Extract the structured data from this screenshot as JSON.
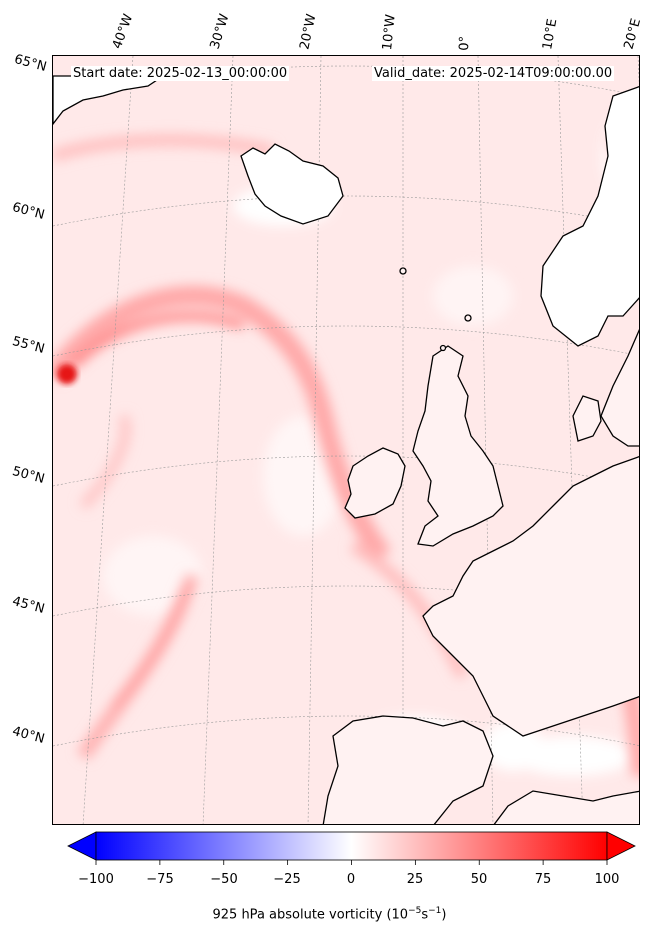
{
  "header": {
    "start_date": "Start date: 2025-02-13_00:00:00",
    "valid_date": "Valid_date: 2025-02-14T09:00:00.00"
  },
  "longitude_labels": [
    "40°W",
    "30°W",
    "20°W",
    "10°W",
    "0°",
    "10°E",
    "20°E"
  ],
  "latitude_labels": [
    "65°N",
    "60°N",
    "55°N",
    "50°N",
    "45°N",
    "40°N"
  ],
  "colorbar": {
    "ticks": [
      "−100",
      "−75",
      "−50",
      "−25",
      "0",
      "25",
      "50",
      "75",
      "100"
    ],
    "label_main": "925 hPa absolute vorticity (10",
    "label_exp1": "−5",
    "label_mid": "s",
    "label_exp2": "−1",
    "label_end": ")",
    "min": -100,
    "max": 100,
    "color_low": "#0000ff",
    "color_mid": "#ffffff",
    "color_high": "#ff0000"
  },
  "map": {
    "land_outline_color": "#000000",
    "ocean_field_color": "#ffecec"
  }
}
